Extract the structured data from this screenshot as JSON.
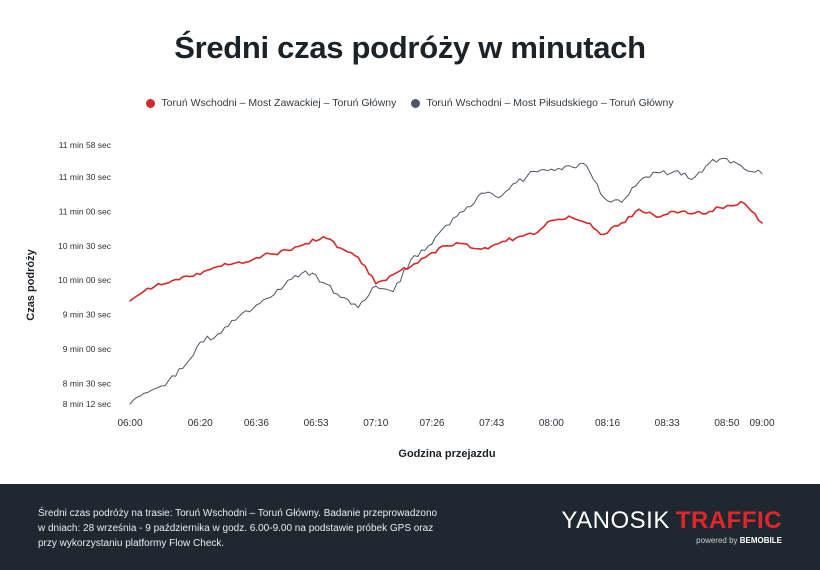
{
  "title": "Średni czas podróży w minutach",
  "legend": {
    "series1": "Toruń Wschodni – Most Zawackiej – Toruń Główny",
    "series2": "Toruń Wschodni – Most Piłsudskiego – Toruń Główny"
  },
  "colors": {
    "series1": "#d42a2a",
    "series2": "#4e5760",
    "footer_bg": "#1f2830",
    "brand_accent": "#e1262b"
  },
  "chart_data": {
    "type": "line",
    "xlabel": "Godzina przejazdu",
    "ylabel": "Czas podróży",
    "y_unit": "seconds",
    "x_range": [
      "06:00",
      "09:00"
    ],
    "ylim": [
      492,
      718
    ],
    "x_ticks": [
      "06:00",
      "06:20",
      "06:36",
      "06:53",
      "07:10",
      "07:26",
      "07:43",
      "08:00",
      "08:16",
      "08:33",
      "08:50",
      "09:00"
    ],
    "y_ticks": [
      {
        "value": 492,
        "label": "8 min 12 sec"
      },
      {
        "value": 510,
        "label": "8 min 30 sec"
      },
      {
        "value": 540,
        "label": "9 min 00 sec"
      },
      {
        "value": 570,
        "label": "9 min 30 sec"
      },
      {
        "value": 600,
        "label": "10 min 00 sec"
      },
      {
        "value": 630,
        "label": "10 min 30 sec"
      },
      {
        "value": 660,
        "label": "11 min 00 sec"
      },
      {
        "value": 690,
        "label": "11 min 30 sec"
      },
      {
        "value": 718,
        "label": "11 min 58 sec"
      }
    ],
    "series": [
      {
        "name": "Toruń Wschodni – Most Zawackiej – Toruń Główny",
        "x": [
          "06:00",
          "06:05",
          "06:10",
          "06:15",
          "06:20",
          "06:25",
          "06:30",
          "06:35",
          "06:40",
          "06:45",
          "06:50",
          "06:55",
          "07:00",
          "07:05",
          "07:10",
          "07:15",
          "07:20",
          "07:25",
          "07:30",
          "07:35",
          "07:40",
          "07:45",
          "07:50",
          "07:55",
          "08:00",
          "08:05",
          "08:10",
          "08:15",
          "08:20",
          "08:25",
          "08:30",
          "08:35",
          "08:40",
          "08:45",
          "08:50",
          "08:55",
          "09:00"
        ],
        "values": [
          582,
          593,
          597,
          603,
          605,
          612,
          615,
          618,
          623,
          626,
          632,
          638,
          628,
          620,
          597,
          605,
          612,
          622,
          630,
          632,
          627,
          632,
          637,
          640,
          652,
          656,
          650,
          640,
          650,
          662,
          655,
          660,
          658,
          660,
          665,
          667,
          650
        ]
      },
      {
        "name": "Toruń Wschodni – Most Piłsudskiego – Toruń Główny",
        "x": [
          "06:00",
          "06:05",
          "06:10",
          "06:15",
          "06:20",
          "06:25",
          "06:30",
          "06:35",
          "06:40",
          "06:45",
          "06:50",
          "06:55",
          "07:00",
          "07:05",
          "07:10",
          "07:15",
          "07:20",
          "07:25",
          "07:30",
          "07:35",
          "07:40",
          "07:45",
          "07:50",
          "07:55",
          "08:00",
          "08:05",
          "08:10",
          "08:15",
          "08:20",
          "08:25",
          "08:30",
          "08:35",
          "08:40",
          "08:45",
          "08:50",
          "08:55",
          "09:00"
        ],
        "values": [
          492,
          502,
          508,
          523,
          546,
          553,
          565,
          575,
          585,
          600,
          608,
          598,
          585,
          576,
          595,
          590,
          618,
          630,
          648,
          660,
          676,
          672,
          685,
          695,
          697,
          700,
          700,
          672,
          668,
          686,
          694,
          695,
          688,
          702,
          706,
          697,
          693
        ]
      }
    ]
  },
  "footer": {
    "line1": "Średni czas podróży na trasie: Toruń Wschodni – Toruń Główny. Badanie przeprowadzono",
    "line2": "w dniach: 28 września - 9 października w godz. 6.00-9.00 na podstawie próbek GPS oraz",
    "line3": "przy wykorzystaniu platformy Flow Check."
  },
  "brand": {
    "part1": "YANOSIK",
    "part2": "TRAFFIC",
    "powered": "powered by",
    "company": "BEMOBILE"
  }
}
